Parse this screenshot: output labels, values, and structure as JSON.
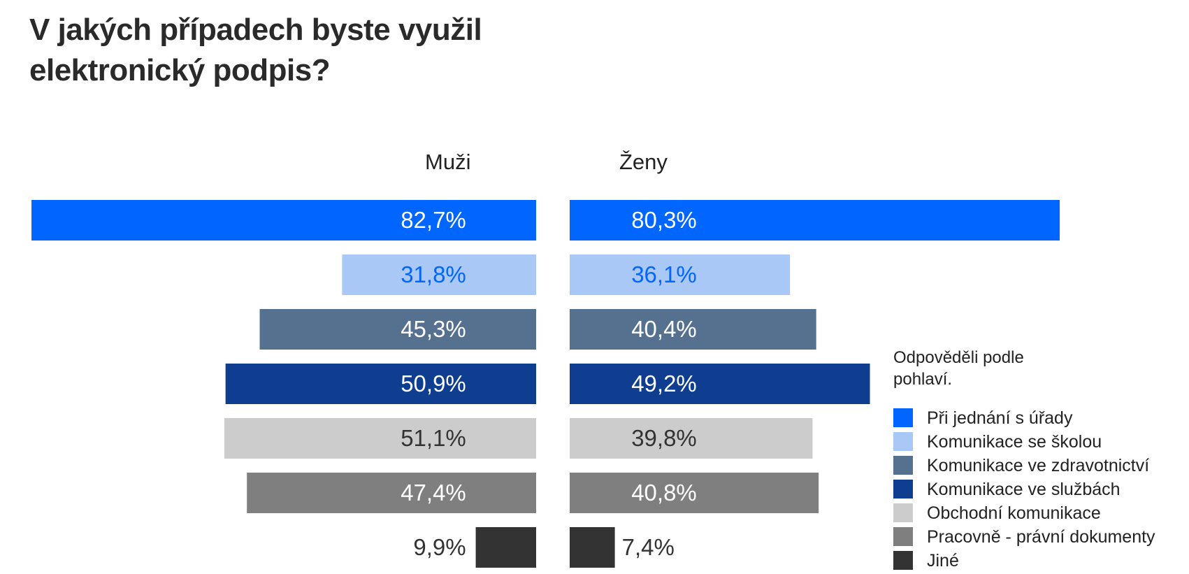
{
  "title_lines": [
    "V jakých případech byste využil",
    "elektronický podpis?"
  ],
  "group_labels": {
    "left": "Muži",
    "right": "Ženy"
  },
  "legend": {
    "note_lines": [
      "Odpověděli podle",
      "pohlaví."
    ],
    "position": "right"
  },
  "chart_data": {
    "type": "bar",
    "orientation": "horizontal-back-to-back",
    "title": "V jakých případech byste využil elektronický podpis?",
    "groups": [
      "Muži",
      "Ženy"
    ],
    "categories": [
      "Při jednání s úřady",
      "Komunikace se školou",
      "Komunikace ve zdravotnictví",
      "Komunikace ve službách",
      "Obchodní komunikace",
      "Pracovně - právní dokumenty",
      "Jiné"
    ],
    "series": [
      {
        "name": "Muži",
        "values": [
          82.7,
          31.8,
          45.3,
          50.9,
          51.1,
          47.4,
          9.9
        ],
        "labels": [
          "82,7%",
          "31,8%",
          "45,3%",
          "50,9%",
          "51,1%",
          "47,4%",
          "9,9%"
        ]
      },
      {
        "name": "Ženy",
        "values": [
          80.3,
          36.1,
          40.4,
          49.2,
          39.8,
          40.8,
          7.4
        ],
        "labels": [
          "80,3%",
          "36,1%",
          "40,4%",
          "49,2%",
          "39,8%",
          "40,8%",
          "7,4%"
        ]
      }
    ],
    "colors": [
      "#0066ff",
      "#a9c8f5",
      "#56718f",
      "#0f3d8f",
      "#cccccc",
      "#7f7f7f",
      "#333333"
    ],
    "label_colors": [
      "#ffffff",
      "#0066ff",
      "#ffffff",
      "#ffffff",
      "#333333",
      "#ffffff",
      "#333333"
    ],
    "unit": "%",
    "grid": false
  }
}
